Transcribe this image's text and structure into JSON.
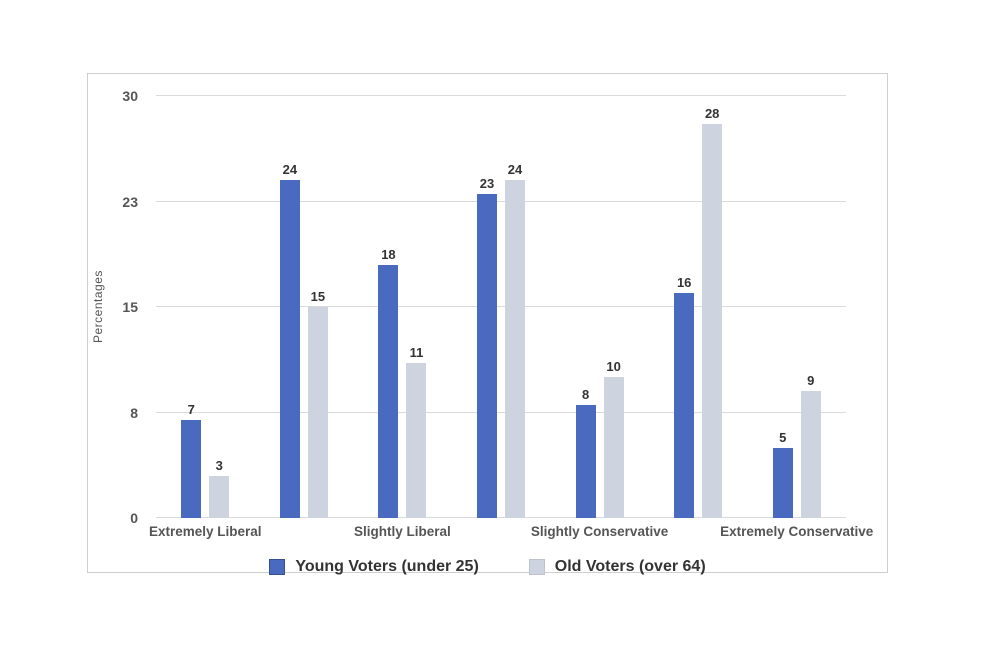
{
  "chart_data": {
    "type": "bar",
    "title": "",
    "ylabel": "Percentages",
    "xlabel": "",
    "ylim": [
      0,
      30
    ],
    "grid": true,
    "legend_position": "bottom",
    "yticks": [
      {
        "value": 0,
        "label": "0"
      },
      {
        "value": 7.5,
        "label": "8"
      },
      {
        "value": 15,
        "label": "15"
      },
      {
        "value": 22.5,
        "label": "23"
      },
      {
        "value": 30,
        "label": "30"
      }
    ],
    "categories": [
      "Extremely Liberal",
      "",
      "Slightly Liberal",
      "",
      "Slightly Conservative",
      "",
      "Extremely Conservative"
    ],
    "series": [
      {
        "name": "Young Voters (under 25)",
        "color": "#4a6abf",
        "values": [
          7,
          24,
          18,
          23,
          8,
          16,
          5
        ]
      },
      {
        "name": "Old Voters (over 64)",
        "color": "#ced3e0",
        "values": [
          3,
          15,
          11,
          24,
          10,
          28,
          9
        ]
      }
    ]
  },
  "colors": {
    "gridline": "#dadada",
    "frame_border": "#cfcfcf",
    "tick_text": "#555555",
    "value_text": "#333333",
    "legend_text": "#333333",
    "background": "#ffffff"
  }
}
